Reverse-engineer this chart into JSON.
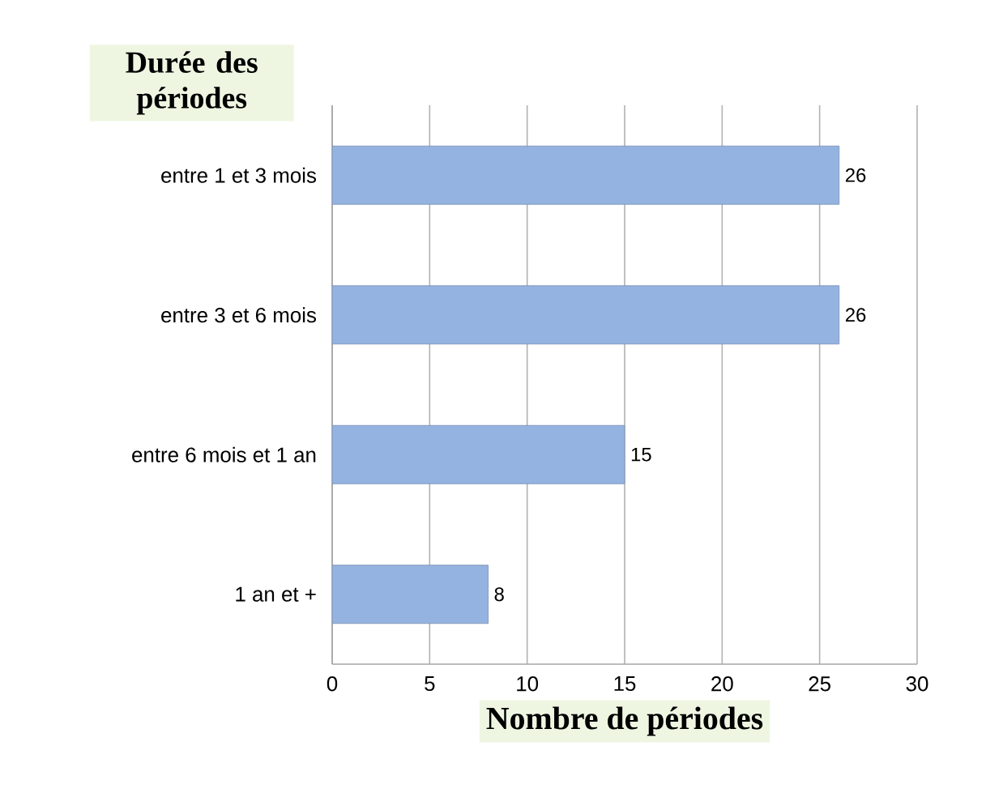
{
  "chart_data": {
    "type": "bar",
    "orientation": "horizontal",
    "ylabel": "Durée des périodes",
    "xlabel": "Nombre de périodes",
    "categories": [
      "entre 1 et 3 mois",
      "entre 3 et 6 mois",
      "entre 6 mois et 1 an",
      "1 an et +"
    ],
    "values": [
      26,
      26,
      15,
      8
    ],
    "color": "#95b3e0",
    "xlim": [
      0,
      30
    ],
    "xticks": [
      0,
      5,
      10,
      15,
      20,
      25,
      30
    ],
    "grid": "x",
    "data_labels": true
  }
}
